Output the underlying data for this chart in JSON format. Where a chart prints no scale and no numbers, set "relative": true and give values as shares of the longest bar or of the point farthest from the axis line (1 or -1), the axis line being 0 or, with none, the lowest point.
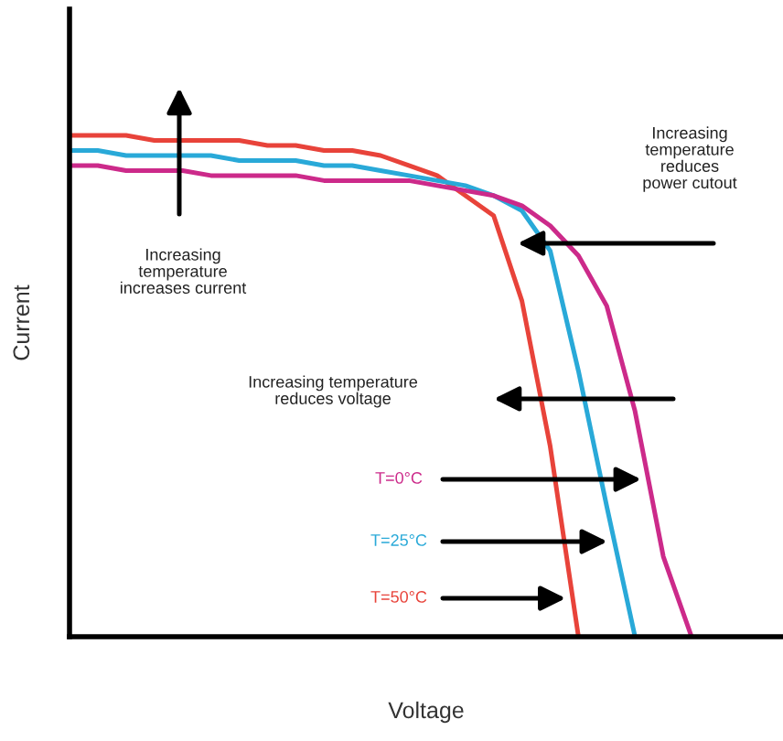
{
  "chart_data": {
    "type": "line",
    "relative": true,
    "xlabel": "Voltage",
    "ylabel": "Current",
    "categories": [
      null,
      null,
      null,
      null,
      null,
      null,
      null,
      null,
      null,
      null,
      null,
      null,
      null,
      null,
      null,
      null,
      null,
      null,
      null,
      null,
      null,
      null,
      null
    ],
    "annotations": [
      "Increasing\ntemperature\nincreases current",
      "Increasing\ntemperature\nreduces\npower cutout",
      "Increasing temperature\nreduces voltage"
    ],
    "series": [
      {
        "name": "T=50°C",
        "color": "#e8433a",
        "values": [
          1,
          1,
          1,
          0.99,
          0.99,
          0.99,
          0.99,
          0.98,
          0.98,
          0.97,
          0.97,
          0.96,
          0.94,
          0.92,
          0.88,
          0.84,
          0.67,
          0.38,
          0,
          null,
          null,
          null,
          null
        ]
      },
      {
        "name": "T=25°C",
        "color": "#29a9d8",
        "values": [
          0.97,
          0.97,
          0.96,
          0.96,
          0.96,
          0.96,
          0.95,
          0.95,
          0.95,
          0.94,
          0.94,
          0.93,
          0.92,
          0.91,
          0.9,
          0.88,
          0.85,
          0.77,
          0.53,
          0.26,
          0,
          null,
          null
        ]
      },
      {
        "name": "T=0°C",
        "color": "#cc2a8a",
        "values": [
          0.94,
          0.94,
          0.93,
          0.93,
          0.93,
          0.92,
          0.92,
          0.92,
          0.92,
          0.91,
          0.91,
          0.91,
          0.91,
          0.9,
          0.89,
          0.88,
          0.86,
          0.82,
          0.76,
          0.66,
          0.45,
          0.16,
          0
        ]
      }
    ]
  }
}
